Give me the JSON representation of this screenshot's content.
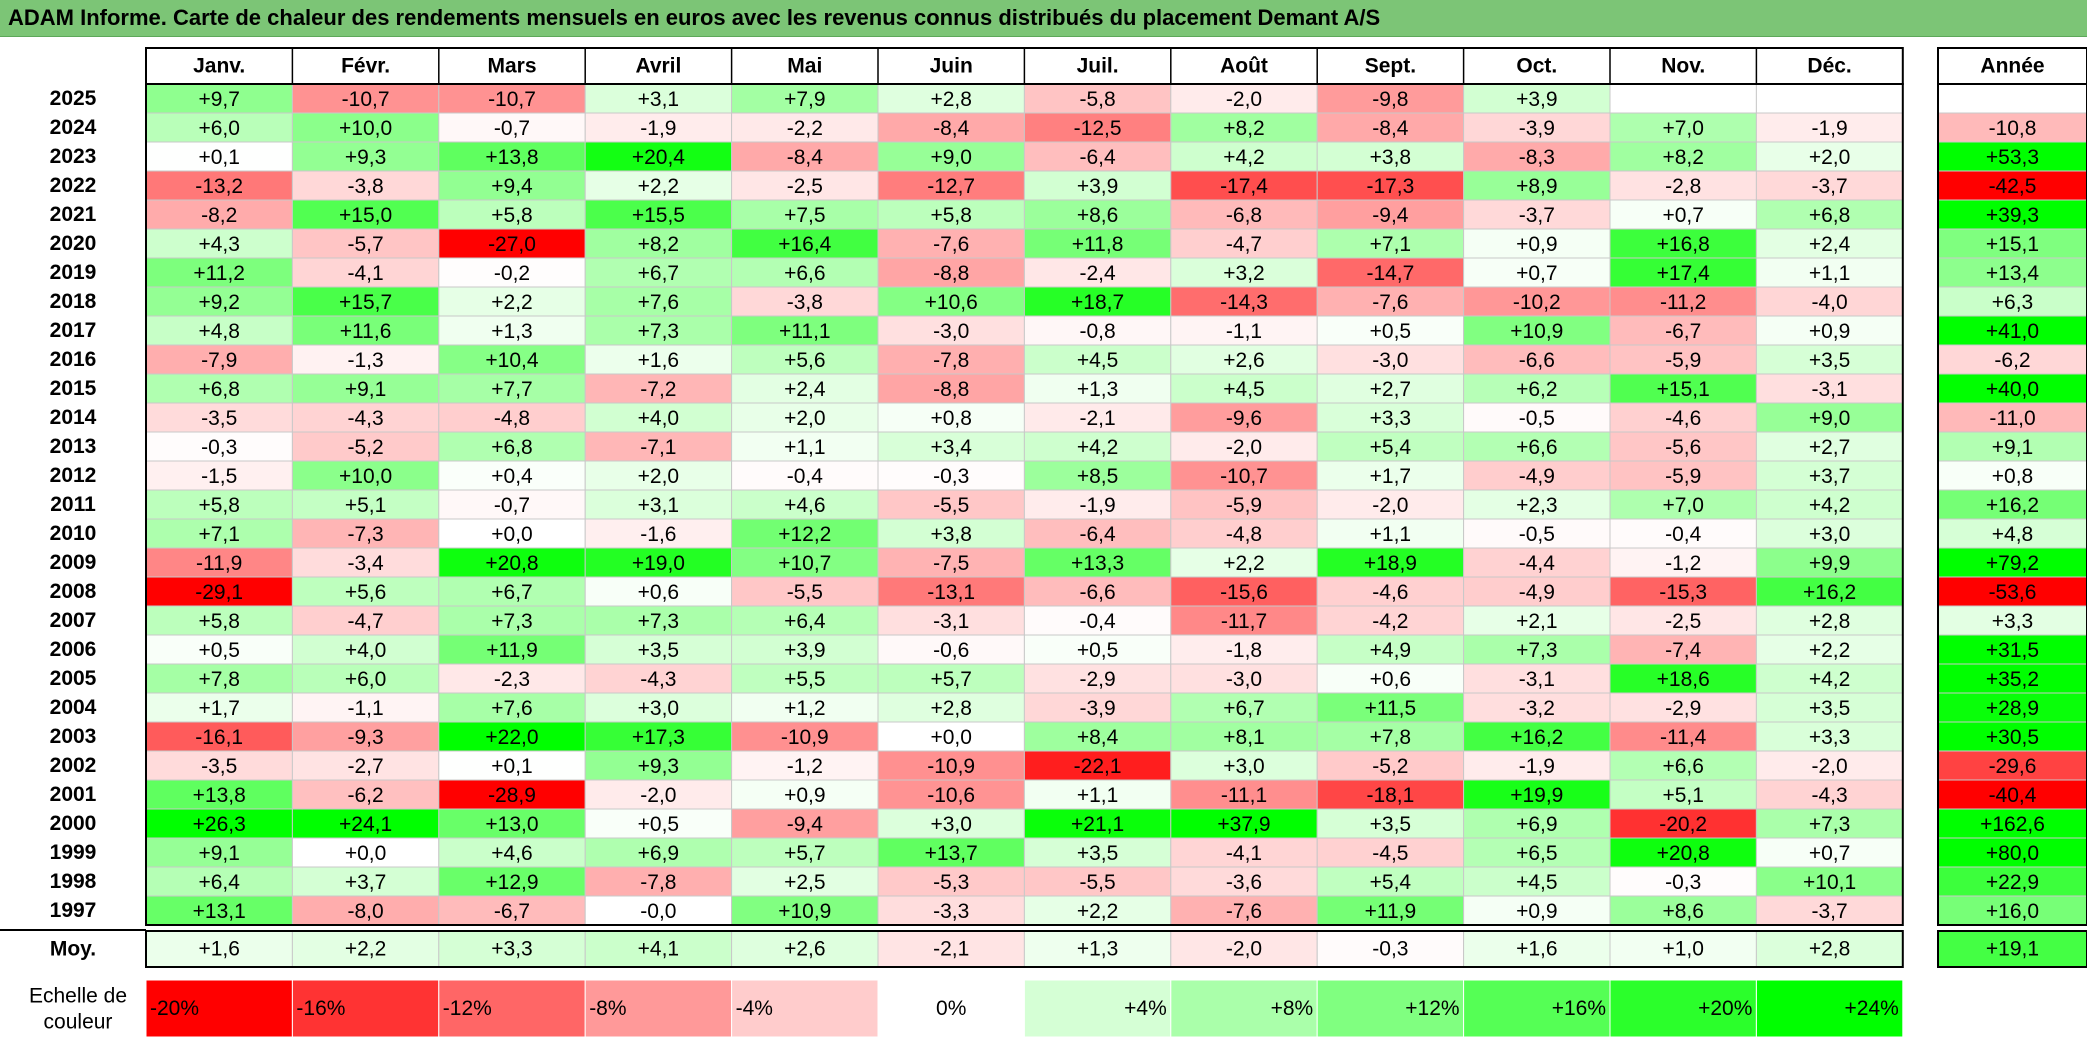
{
  "title": "ADAM Informe. Carte de chaleur des rendements mensuels en euros avec les revenus connus distribués du placement Demant A/S",
  "chart_data": {
    "type": "heatmap",
    "months": [
      "Janv.",
      "Févr.",
      "Mars",
      "Avril",
      "Mai",
      "Juin",
      "Juil.",
      "Août",
      "Sept.",
      "Oct.",
      "Nov.",
      "Déc."
    ],
    "year_header": "Année",
    "rows": [
      {
        "year": "2025",
        "values": [
          "+9,7",
          "-10,7",
          "-10,7",
          "+3,1",
          "+7,9",
          "+2,8",
          "-5,8",
          "-2,0",
          "-9,8",
          "+3,9",
          null,
          null
        ],
        "annual": null
      },
      {
        "year": "2024",
        "values": [
          "+6,0",
          "+10,0",
          "-0,7",
          "-1,9",
          "-2,2",
          "-8,4",
          "-12,5",
          "+8,2",
          "-8,4",
          "-3,9",
          "+7,0",
          "-1,9"
        ],
        "annual": "-10,8"
      },
      {
        "year": "2023",
        "values": [
          "+0,1",
          "+9,3",
          "+13,8",
          "+20,4",
          "-8,4",
          "+9,0",
          "-6,4",
          "+4,2",
          "+3,8",
          "-8,3",
          "+8,2",
          "+2,0"
        ],
        "annual": "+53,3"
      },
      {
        "year": "2022",
        "values": [
          "-13,2",
          "-3,8",
          "+9,4",
          "+2,2",
          "-2,5",
          "-12,7",
          "+3,9",
          "-17,4",
          "-17,3",
          "+8,9",
          "-2,8",
          "-3,7"
        ],
        "annual": "-42,5"
      },
      {
        "year": "2021",
        "values": [
          "-8,2",
          "+15,0",
          "+5,8",
          "+15,5",
          "+7,5",
          "+5,8",
          "+8,6",
          "-6,8",
          "-9,4",
          "-3,7",
          "+0,7",
          "+6,8"
        ],
        "annual": "+39,3"
      },
      {
        "year": "2020",
        "values": [
          "+4,3",
          "-5,7",
          "-27,0",
          "+8,2",
          "+16,4",
          "-7,6",
          "+11,8",
          "-4,7",
          "+7,1",
          "+0,9",
          "+16,8",
          "+2,4"
        ],
        "annual": "+15,1"
      },
      {
        "year": "2019",
        "values": [
          "+11,2",
          "-4,1",
          "-0,2",
          "+6,7",
          "+6,6",
          "-8,8",
          "-2,4",
          "+3,2",
          "-14,7",
          "+0,7",
          "+17,4",
          "+1,1"
        ],
        "annual": "+13,4"
      },
      {
        "year": "2018",
        "values": [
          "+9,2",
          "+15,7",
          "+2,2",
          "+7,6",
          "-3,8",
          "+10,6",
          "+18,7",
          "-14,3",
          "-7,6",
          "-10,2",
          "-11,2",
          "-4,0"
        ],
        "annual": "+6,3"
      },
      {
        "year": "2017",
        "values": [
          "+4,8",
          "+11,6",
          "+1,3",
          "+7,3",
          "+11,1",
          "-3,0",
          "-0,8",
          "-1,1",
          "+0,5",
          "+10,9",
          "-6,7",
          "+0,9"
        ],
        "annual": "+41,0"
      },
      {
        "year": "2016",
        "values": [
          "-7,9",
          "-1,3",
          "+10,4",
          "+1,6",
          "+5,6",
          "-7,8",
          "+4,5",
          "+2,6",
          "-3,0",
          "-6,6",
          "-5,9",
          "+3,5"
        ],
        "annual": "-6,2"
      },
      {
        "year": "2015",
        "values": [
          "+6,8",
          "+9,1",
          "+7,7",
          "-7,2",
          "+2,4",
          "-8,8",
          "+1,3",
          "+4,5",
          "+2,7",
          "+6,2",
          "+15,1",
          "-3,1"
        ],
        "annual": "+40,0"
      },
      {
        "year": "2014",
        "values": [
          "-3,5",
          "-4,3",
          "-4,8",
          "+4,0",
          "+2,0",
          "+0,8",
          "-2,1",
          "-9,6",
          "+3,3",
          "-0,5",
          "-4,6",
          "+9,0"
        ],
        "annual": "-11,0"
      },
      {
        "year": "2013",
        "values": [
          "-0,3",
          "-5,2",
          "+6,8",
          "-7,1",
          "+1,1",
          "+3,4",
          "+4,2",
          "-2,0",
          "+5,4",
          "+6,6",
          "-5,6",
          "+2,7"
        ],
        "annual": "+9,1"
      },
      {
        "year": "2012",
        "values": [
          "-1,5",
          "+10,0",
          "+0,4",
          "+2,0",
          "-0,4",
          "-0,3",
          "+8,5",
          "-10,7",
          "+1,7",
          "-4,9",
          "-5,9",
          "+3,7"
        ],
        "annual": "+0,8"
      },
      {
        "year": "2011",
        "values": [
          "+5,8",
          "+5,1",
          "-0,7",
          "+3,1",
          "+4,6",
          "-5,5",
          "-1,9",
          "-5,9",
          "-2,0",
          "+2,3",
          "+7,0",
          "+4,2"
        ],
        "annual": "+16,2"
      },
      {
        "year": "2010",
        "values": [
          "+7,1",
          "-7,3",
          "+0,0",
          "-1,6",
          "+12,2",
          "+3,8",
          "-6,4",
          "-4,8",
          "+1,1",
          "-0,5",
          "-0,4",
          "+3,0"
        ],
        "annual": "+4,8"
      },
      {
        "year": "2009",
        "values": [
          "-11,9",
          "-3,4",
          "+20,8",
          "+19,0",
          "+10,7",
          "-7,5",
          "+13,3",
          "+2,2",
          "+18,9",
          "-4,4",
          "-1,2",
          "+9,9"
        ],
        "annual": "+79,2"
      },
      {
        "year": "2008",
        "values": [
          "-29,1",
          "+5,6",
          "+6,7",
          "+0,6",
          "-5,5",
          "-13,1",
          "-6,6",
          "-15,6",
          "-4,6",
          "-4,9",
          "-15,3",
          "+16,2"
        ],
        "annual": "-53,6"
      },
      {
        "year": "2007",
        "values": [
          "+5,8",
          "-4,7",
          "+7,3",
          "+7,3",
          "+6,4",
          "-3,1",
          "-0,4",
          "-11,7",
          "-4,2",
          "+2,1",
          "-2,5",
          "+2,8"
        ],
        "annual": "+3,3"
      },
      {
        "year": "2006",
        "values": [
          "+0,5",
          "+4,0",
          "+11,9",
          "+3,5",
          "+3,9",
          "-0,6",
          "+0,5",
          "-1,8",
          "+4,9",
          "+7,3",
          "-7,4",
          "+2,2"
        ],
        "annual": "+31,5"
      },
      {
        "year": "2005",
        "values": [
          "+7,8",
          "+6,0",
          "-2,3",
          "-4,3",
          "+5,5",
          "+5,7",
          "-2,9",
          "-3,0",
          "+0,6",
          "-3,1",
          "+18,6",
          "+4,2"
        ],
        "annual": "+35,2"
      },
      {
        "year": "2004",
        "values": [
          "+1,7",
          "-1,1",
          "+7,6",
          "+3,0",
          "+1,2",
          "+2,8",
          "-3,9",
          "+6,7",
          "+11,5",
          "-3,2",
          "-2,9",
          "+3,5"
        ],
        "annual": "+28,9"
      },
      {
        "year": "2003",
        "values": [
          "-16,1",
          "-9,3",
          "+22,0",
          "+17,3",
          "-10,9",
          "+0,0",
          "+8,4",
          "+8,1",
          "+7,8",
          "+16,2",
          "-11,4",
          "+3,3"
        ],
        "annual": "+30,5"
      },
      {
        "year": "2002",
        "values": [
          "-3,5",
          "-2,7",
          "+0,1",
          "+9,3",
          "-1,2",
          "-10,9",
          "-22,1",
          "+3,0",
          "-5,2",
          "-1,9",
          "+6,6",
          "-2,0"
        ],
        "annual": "-29,6"
      },
      {
        "year": "2001",
        "values": [
          "+13,8",
          "-6,2",
          "-28,9",
          "-2,0",
          "+0,9",
          "-10,6",
          "+1,1",
          "-11,1",
          "-18,1",
          "+19,9",
          "+5,1",
          "-4,3"
        ],
        "annual": "-40,4"
      },
      {
        "year": "2000",
        "values": [
          "+26,3",
          "+24,1",
          "+13,0",
          "+0,5",
          "-9,4",
          "+3,0",
          "+21,1",
          "+37,9",
          "+3,5",
          "+6,9",
          "-20,2",
          "+7,3"
        ],
        "annual": "+162,6"
      },
      {
        "year": "1999",
        "values": [
          "+9,1",
          "+0,0",
          "+4,6",
          "+6,9",
          "+5,7",
          "+13,7",
          "+3,5",
          "-4,1",
          "-4,5",
          "+6,5",
          "+20,8",
          "+0,7"
        ],
        "annual": "+80,0"
      },
      {
        "year": "1998",
        "values": [
          "+6,4",
          "+3,7",
          "+12,9",
          "-7,8",
          "+2,5",
          "-5,3",
          "-5,5",
          "-3,6",
          "+5,4",
          "+4,5",
          "-0,3",
          "+10,1"
        ],
        "annual": "+22,9"
      },
      {
        "year": "1997",
        "values": [
          "+13,1",
          "-8,0",
          "-6,7",
          "-0,0",
          "+10,9",
          "-3,3",
          "+2,2",
          "-7,6",
          "+11,9",
          "+0,9",
          "+8,6",
          "-3,7"
        ],
        "annual": "+16,0"
      }
    ],
    "average": {
      "label": "Moy.",
      "values": [
        "+1,6",
        "+2,2",
        "+3,3",
        "+4,1",
        "+2,6",
        "-2,1",
        "+1,3",
        "-2,0",
        "-0,3",
        "+1,6",
        "+1,0",
        "+2,8"
      ],
      "annual": "+19,1"
    },
    "scale": {
      "label_line1": "Echelle de",
      "label_line2": "couleur",
      "steps": [
        "-20%",
        "-16%",
        "-12%",
        "-8%",
        "-4%",
        "0%",
        "+4%",
        "+8%",
        "+12%",
        "+16%",
        "+20%",
        "+24%"
      ]
    },
    "colors": {
      "negative": "#ff0000",
      "neutral": "#ffffff",
      "positive": "#00ff00",
      "title_bar": "#7cc576"
    }
  }
}
